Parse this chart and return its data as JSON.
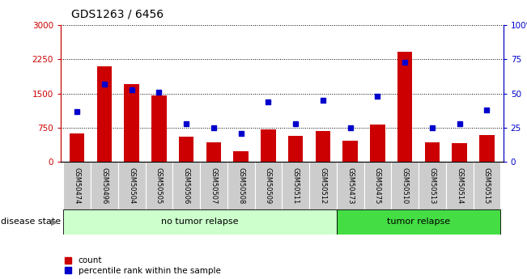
{
  "title": "GDS1263 / 6456",
  "samples": [
    "GSM50474",
    "GSM50496",
    "GSM50504",
    "GSM50505",
    "GSM50506",
    "GSM50507",
    "GSM50508",
    "GSM50509",
    "GSM50511",
    "GSM50512",
    "GSM50473",
    "GSM50475",
    "GSM50510",
    "GSM50513",
    "GSM50514",
    "GSM50515"
  ],
  "counts": [
    620,
    2100,
    1700,
    1450,
    560,
    430,
    230,
    720,
    570,
    680,
    470,
    810,
    2420,
    430,
    410,
    590
  ],
  "percentiles": [
    37,
    57,
    53,
    51,
    28,
    25,
    21,
    44,
    28,
    45,
    25,
    48,
    73,
    25,
    28,
    38
  ],
  "no_tumor_count": 10,
  "tumor_count": 6,
  "ylim_left": [
    0,
    3000
  ],
  "ylim_right": [
    0,
    100
  ],
  "yticks_left": [
    0,
    750,
    1500,
    2250,
    3000
  ],
  "yticks_right": [
    0,
    25,
    50,
    75,
    100
  ],
  "bar_color": "#cc0000",
  "dot_color": "#0000cc",
  "no_tumor_color": "#ccffcc",
  "tumor_color": "#44dd44",
  "label_bg_color": "#cccccc",
  "grid_color": "black",
  "disease_state_label": "disease state",
  "no_tumor_label": "no tumor relapse",
  "tumor_label": "tumor relapse",
  "count_legend": "count",
  "percentile_legend": "percentile rank within the sample",
  "title_fontsize": 10,
  "tick_fontsize": 7.5,
  "sample_fontsize": 6,
  "legend_fontsize": 7.5,
  "disease_fontsize": 8
}
